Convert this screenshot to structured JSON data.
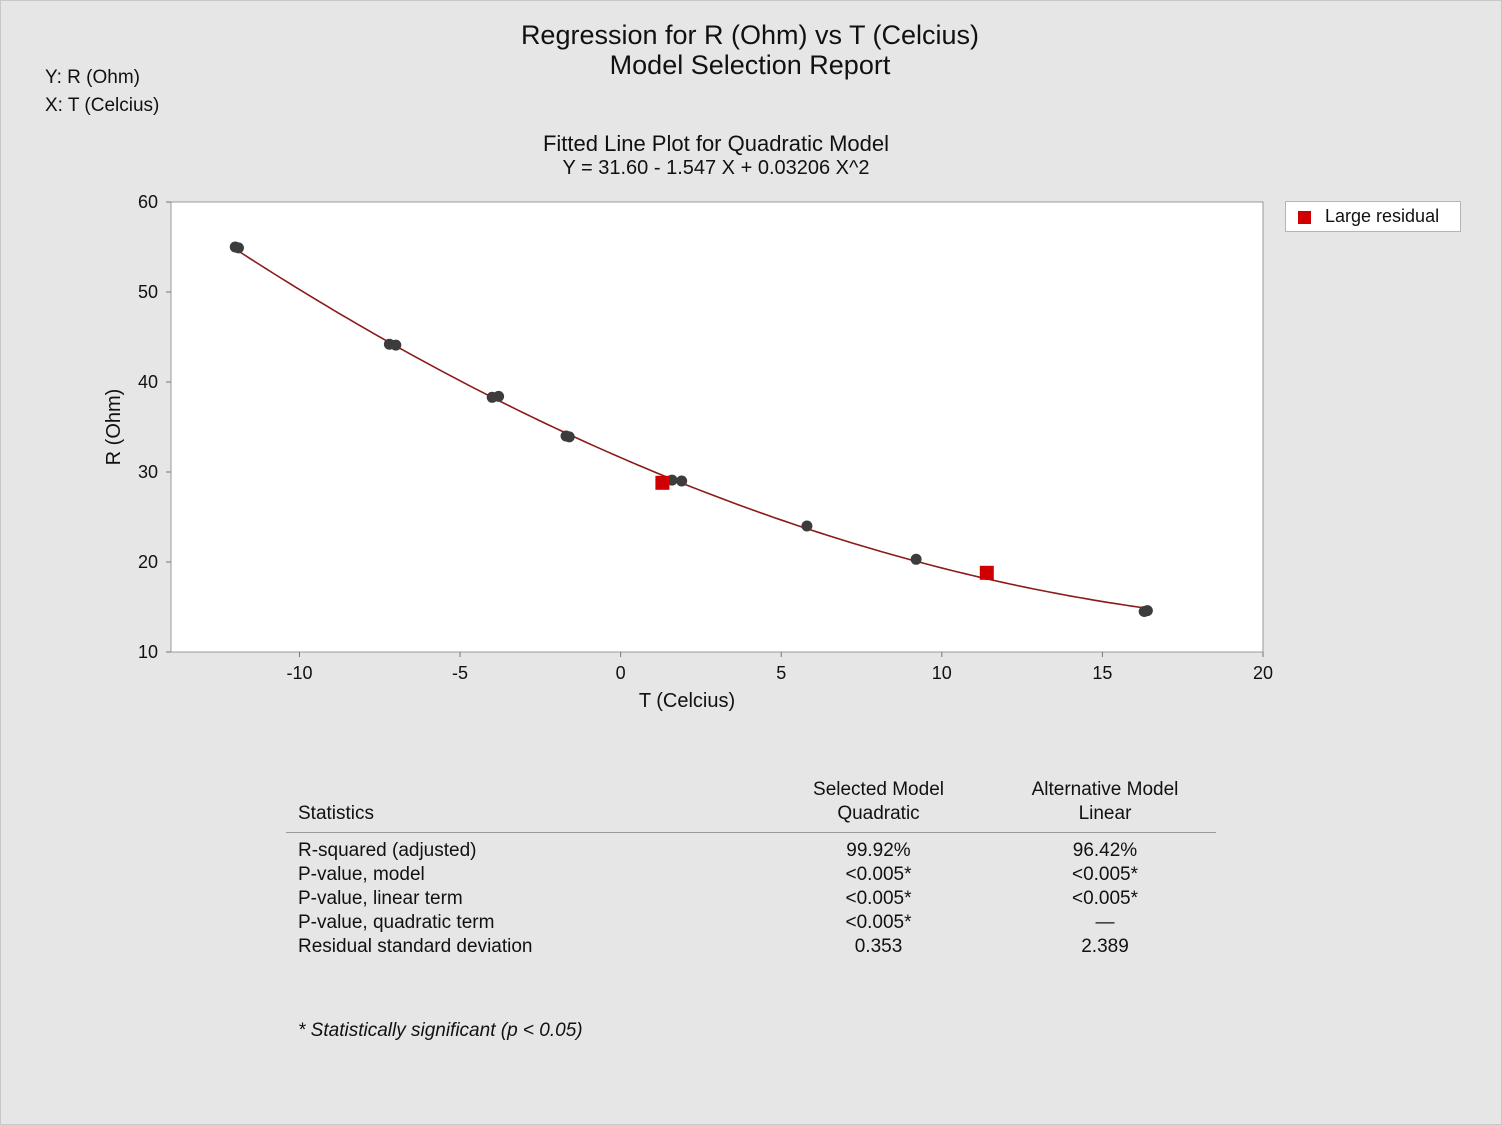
{
  "report": {
    "title": "Regression for R (Ohm) vs T (Celcius)",
    "subtitle": "Model Selection Report",
    "y_var": "Y: R (Ohm)",
    "x_var": "X: T (Celcius)"
  },
  "chart_data": {
    "type": "scatter",
    "title": "Fitted Line Plot for Quadratic Model",
    "subtitle": "Y = 31.60 - 1.547 X + 0.03206 X^2",
    "xlabel": "T (Celcius)",
    "ylabel": "R (Ohm)",
    "xlim": [
      -14,
      20
    ],
    "ylim": [
      10,
      60
    ],
    "xticks": [
      -10,
      -5,
      0,
      5,
      10,
      15,
      20
    ],
    "yticks": [
      10,
      20,
      30,
      40,
      50,
      60
    ],
    "grid": false,
    "legend_position": "top-right, outside plot",
    "legend": [
      "Large residual"
    ],
    "fit": {
      "intercept": 31.6,
      "linear": -1.547,
      "quadratic": 0.03206
    },
    "points": [
      {
        "x": -12.0,
        "y": 55.0
      },
      {
        "x": -11.9,
        "y": 54.9
      },
      {
        "x": -7.2,
        "y": 44.2
      },
      {
        "x": -7.0,
        "y": 44.1
      },
      {
        "x": -4.0,
        "y": 38.3
      },
      {
        "x": -3.8,
        "y": 38.4
      },
      {
        "x": -1.7,
        "y": 34.0
      },
      {
        "x": -1.6,
        "y": 33.9
      },
      {
        "x": 1.6,
        "y": 29.1
      },
      {
        "x": 1.9,
        "y": 29.0
      },
      {
        "x": 5.8,
        "y": 24.0
      },
      {
        "x": 9.2,
        "y": 20.3
      },
      {
        "x": 11.4,
        "y": 18.6
      },
      {
        "x": 16.3,
        "y": 14.5
      },
      {
        "x": 16.4,
        "y": 14.6
      }
    ],
    "large_residuals": [
      {
        "x": 1.3,
        "y": 28.8
      },
      {
        "x": 11.4,
        "y": 18.8
      }
    ],
    "colors": {
      "fit_line": "#8b1a1a",
      "points": "#3c3c3c",
      "large_residual": "#d00000"
    }
  },
  "stats": {
    "header_stat": "Statistics",
    "header_selected_1": "Selected Model",
    "header_selected_2": "Quadratic",
    "header_alt_1": "Alternative Model",
    "header_alt_2": "Linear",
    "rows": [
      {
        "label": "R-squared (adjusted)",
        "selected": "99.92%",
        "alternative": "96.42%"
      },
      {
        "label": "P-value, model",
        "selected": "<0.005*",
        "alternative": "<0.005*"
      },
      {
        "label": "P-value, linear term",
        "selected": "<0.005*",
        "alternative": "<0.005*"
      },
      {
        "label": "P-value, quadratic term",
        "selected": "<0.005*",
        "alternative": "—"
      },
      {
        "label": "Residual standard deviation",
        "selected": "0.353",
        "alternative": "2.389"
      }
    ],
    "footnote": "* Statistically significant (p < 0.05)"
  }
}
